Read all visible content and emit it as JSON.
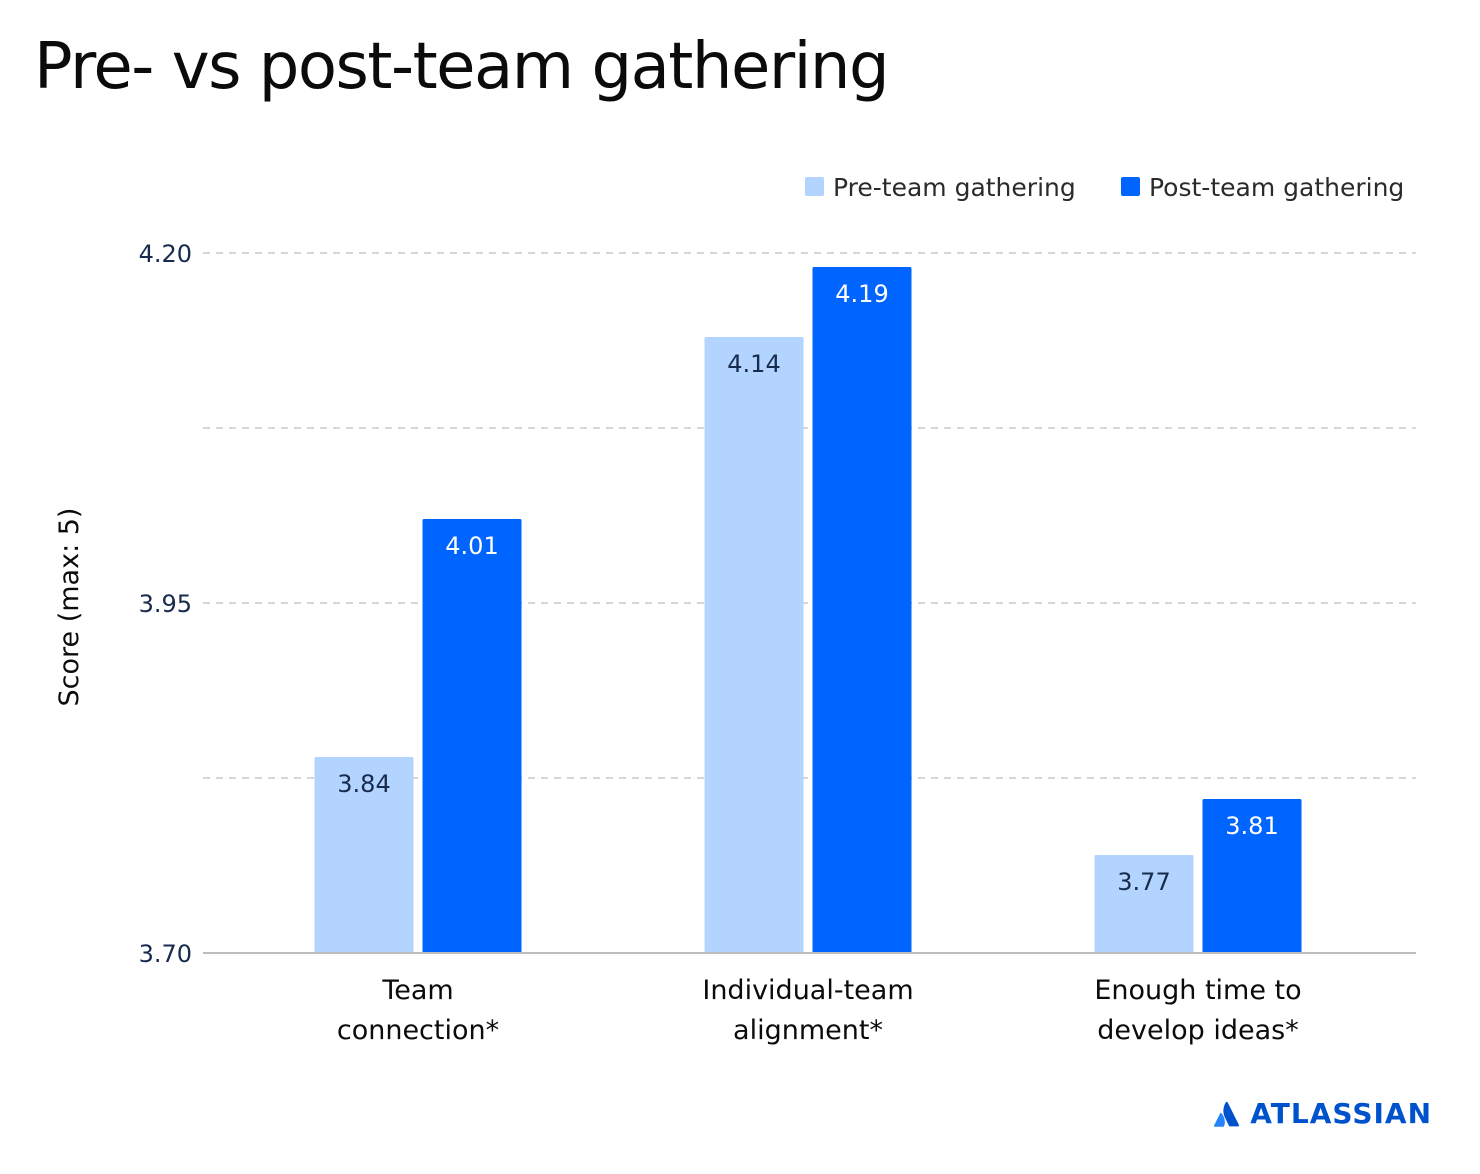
{
  "colors": {
    "pre": "#B3D4FF",
    "post": "#0065FF",
    "grid": "#C8C8C8",
    "axis": "#BDBDBD",
    "text": "#172B4D",
    "brand": "#0052CC"
  },
  "brand": {
    "name": "ATLASSIAN",
    "icon": "atlassian-logo-icon"
  },
  "chart_data": {
    "type": "bar",
    "title": "Pre- vs post-team gathering",
    "ylabel": "Score (max: 5)",
    "xlabel": "",
    "ylim": [
      3.7,
      4.2
    ],
    "yticks": [
      "3.70",
      "3.95",
      "4.20"
    ],
    "grid": true,
    "legend_position": "top-right",
    "categories": [
      [
        "Team",
        "connection*"
      ],
      [
        "Individual-team",
        "alignment*"
      ],
      [
        "Enough time to",
        "develop ideas*"
      ]
    ],
    "series": [
      {
        "name": "Pre-team gathering",
        "values": [
          3.84,
          4.14,
          3.77
        ],
        "labels": [
          "3.84",
          "4.14",
          "3.77"
        ]
      },
      {
        "name": "Post-team gathering",
        "values": [
          4.01,
          4.19,
          3.81
        ],
        "labels": [
          "4.01",
          "4.19",
          "3.81"
        ]
      }
    ]
  }
}
